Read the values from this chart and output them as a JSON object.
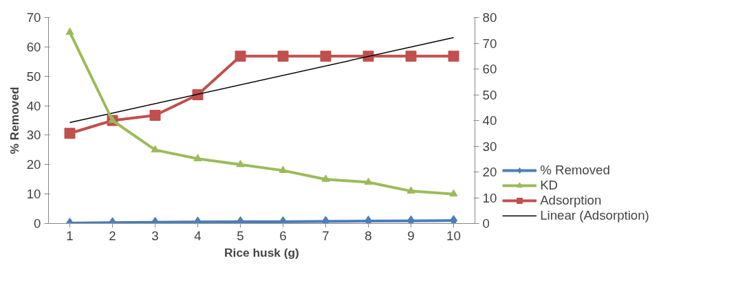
{
  "chart_data": {
    "type": "line",
    "xlabel": "Rice husk (g)",
    "ylabel": "% Removed",
    "x": [
      1,
      2,
      3,
      4,
      5,
      6,
      7,
      8,
      9,
      10
    ],
    "xlim": [
      0.5,
      10.5
    ],
    "xticks": [
      1,
      2,
      3,
      4,
      5,
      6,
      7,
      8,
      9,
      10
    ],
    "ylim": [
      0,
      70
    ],
    "yticks": [
      0,
      10,
      20,
      30,
      40,
      50,
      60,
      70
    ],
    "y2lim": [
      0,
      80
    ],
    "y2ticks": [
      0,
      10,
      20,
      30,
      40,
      50,
      60,
      70,
      80
    ],
    "grid": false,
    "legend": "right",
    "series": [
      {
        "name": "% Removed",
        "color": "#4a7ebb",
        "marker": "diamond",
        "values": [
          0.1,
          0.3,
          0.4,
          0.5,
          0.6,
          0.6,
          0.7,
          0.8,
          0.9,
          1.0
        ]
      },
      {
        "name": "KD",
        "color": "#9bbb59",
        "marker": "triangle",
        "values": [
          65,
          35,
          25,
          22,
          20,
          18,
          15,
          14,
          11,
          10
        ]
      },
      {
        "name": "Adsorption",
        "color": "#c0504d",
        "marker": "square",
        "axis": "y2",
        "values": [
          35,
          40,
          42,
          50,
          65,
          65,
          65,
          65,
          65,
          65
        ]
      },
      {
        "name": "Linear (Adsorption)",
        "color": "#000000",
        "marker": "none",
        "axis": "y2",
        "x": [
          1,
          10
        ],
        "values": [
          39.2,
          72.2
        ]
      }
    ]
  }
}
